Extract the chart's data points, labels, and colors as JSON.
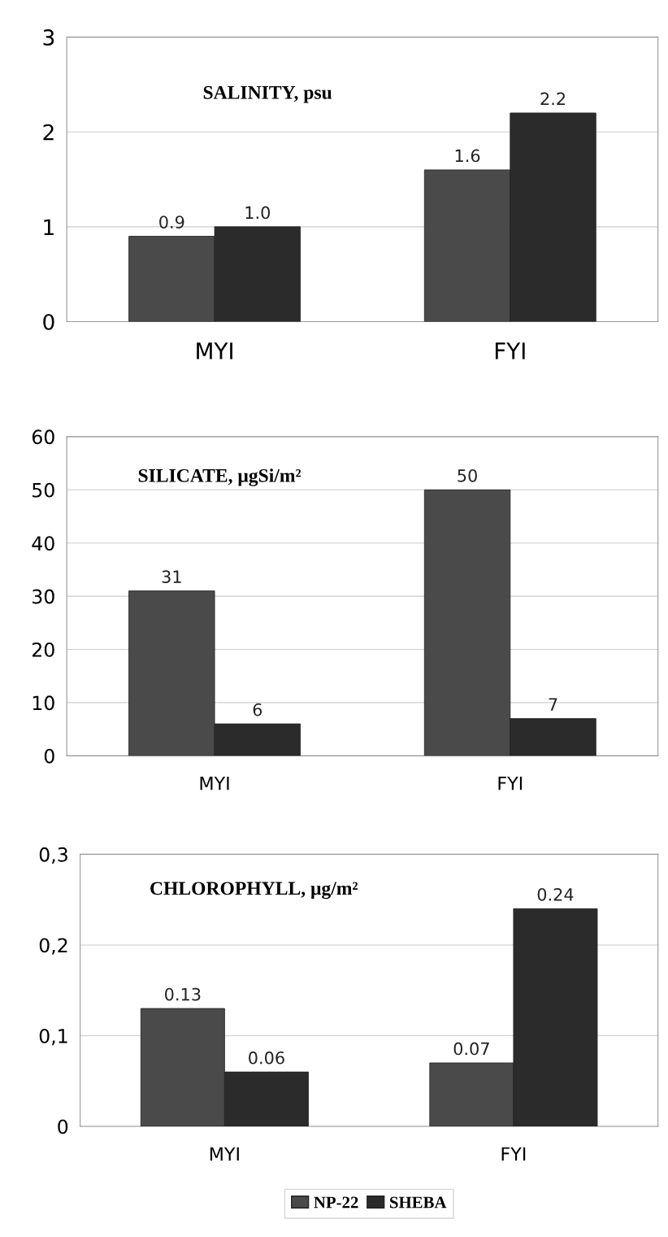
{
  "chart_data": [
    {
      "type": "bar",
      "title": "SALINITY, psu",
      "categories": [
        "MYI",
        "FYI"
      ],
      "series": [
        {
          "color": "#4a4a4a",
          "values": [
            0.9,
            1.6
          ],
          "value_labels": [
            "0.9",
            "1.6"
          ]
        },
        {
          "color": "#2b2b2b",
          "values": [
            1.0,
            2.2
          ],
          "value_labels": [
            "1.0",
            "2.2"
          ]
        }
      ],
      "ylim": [
        0,
        3
      ],
      "yticks": [
        0,
        1,
        2,
        3
      ],
      "grid": "y"
    },
    {
      "type": "bar",
      "title": "SILICATE, μgSi/m²",
      "categories": [
        "MYI",
        "FYI"
      ],
      "series": [
        {
          "color": "#4a4a4a",
          "values": [
            31,
            50
          ],
          "value_labels": [
            "31",
            "50"
          ]
        },
        {
          "color": "#2b2b2b",
          "values": [
            6,
            7
          ],
          "value_labels": [
            "6",
            "7"
          ]
        }
      ],
      "ylim": [
        0,
        60
      ],
      "yticks": [
        0,
        10,
        20,
        30,
        40,
        50,
        60
      ],
      "grid": "y"
    },
    {
      "type": "bar",
      "title": "CHLOROPHYLL, μg/m²",
      "categories": [
        "MYI",
        "FYI"
      ],
      "series": [
        {
          "name": "NP-22",
          "color": "#4a4a4a",
          "values": [
            0.13,
            0.07
          ],
          "value_labels": [
            "0.13",
            "0.07"
          ]
        },
        {
          "name": "SHEBA",
          "color": "#2b2b2b",
          "values": [
            0.06,
            0.24
          ],
          "value_labels": [
            "0.06",
            "0.24"
          ]
        }
      ],
      "ylim": [
        0,
        0.3
      ],
      "yticks": [
        0,
        {
          "value": 0.1,
          "label": "0,1"
        },
        {
          "value": 0.2,
          "label": "0,2"
        },
        {
          "value": 0.3,
          "label": "0,3"
        }
      ],
      "grid": "y",
      "legend": "bottom"
    }
  ]
}
